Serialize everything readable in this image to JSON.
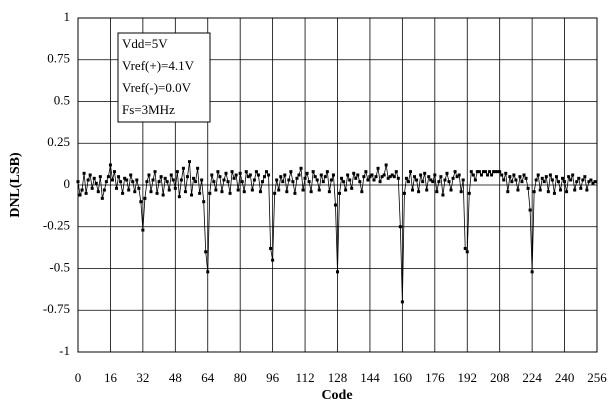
{
  "chart_data": {
    "type": "line",
    "xlabel": "Code",
    "ylabel": "DNL(LSB)",
    "annotations": [
      "Vdd=5V",
      "Vref(+)=4.1V",
      "Vref(-)=0.0V",
      "Fs=3MHz"
    ],
    "xlim": [
      0,
      256
    ],
    "ylim": [
      -1,
      1
    ],
    "xticks": [
      0,
      16,
      32,
      48,
      64,
      80,
      96,
      112,
      128,
      144,
      160,
      176,
      192,
      208,
      224,
      240,
      256
    ],
    "yticks": [
      -1,
      -0.75,
      -0.5,
      -0.25,
      0,
      0.25,
      0.5,
      0.75,
      1
    ],
    "grid": true,
    "color": "#000000",
    "x": [
      0,
      1,
      2,
      3,
      4,
      5,
      6,
      7,
      8,
      9,
      10,
      11,
      12,
      13,
      14,
      15,
      16,
      17,
      18,
      19,
      20,
      21,
      22,
      23,
      24,
      25,
      26,
      27,
      28,
      29,
      30,
      31,
      32,
      33,
      34,
      35,
      36,
      37,
      38,
      39,
      40,
      41,
      42,
      43,
      44,
      45,
      46,
      47,
      48,
      49,
      50,
      51,
      52,
      53,
      54,
      55,
      56,
      57,
      58,
      59,
      60,
      61,
      62,
      63,
      64,
      65,
      66,
      67,
      68,
      69,
      70,
      71,
      72,
      73,
      74,
      75,
      76,
      77,
      78,
      79,
      80,
      81,
      82,
      83,
      84,
      85,
      86,
      87,
      88,
      89,
      90,
      91,
      92,
      93,
      94,
      95,
      96,
      97,
      98,
      99,
      100,
      101,
      102,
      103,
      104,
      105,
      106,
      107,
      108,
      109,
      110,
      111,
      112,
      113,
      114,
      115,
      116,
      117,
      118,
      119,
      120,
      121,
      122,
      123,
      124,
      125,
      126,
      127,
      128,
      129,
      130,
      131,
      132,
      133,
      134,
      135,
      136,
      137,
      138,
      139,
      140,
      141,
      142,
      143,
      144,
      145,
      146,
      147,
      148,
      149,
      150,
      151,
      152,
      153,
      154,
      155,
      156,
      157,
      158,
      159,
      160,
      161,
      162,
      163,
      164,
      165,
      166,
      167,
      168,
      169,
      170,
      171,
      172,
      173,
      174,
      175,
      176,
      177,
      178,
      179,
      180,
      181,
      182,
      183,
      184,
      185,
      186,
      187,
      188,
      189,
      190,
      191,
      192,
      193,
      194,
      195,
      196,
      197,
      198,
      199,
      200,
      201,
      202,
      203,
      204,
      205,
      206,
      207,
      208,
      209,
      210,
      211,
      212,
      213,
      214,
      215,
      216,
      217,
      218,
      219,
      220,
      221,
      222,
      223,
      224,
      225,
      226,
      227,
      228,
      229,
      230,
      231,
      232,
      233,
      234,
      235,
      236,
      237,
      238,
      239,
      240,
      241,
      242,
      243,
      244,
      245,
      246,
      247,
      248,
      249,
      250,
      251,
      252,
      253,
      254,
      255
    ],
    "values": [
      0.02,
      -0.06,
      -0.03,
      0.07,
      -0.05,
      0.03,
      0.06,
      -0.02,
      0.04,
      0.01,
      -0.04,
      0.05,
      -0.08,
      -0.03,
      0.02,
      0.05,
      0.12,
      0.03,
      0.08,
      -0.02,
      0.05,
      0.02,
      -0.05,
      0.04,
      0.03,
      -0.03,
      0.06,
      0.02,
      -0.04,
      0.03,
      -0.02,
      -0.1,
      -0.27,
      -0.08,
      0.02,
      0.06,
      -0.04,
      0.03,
      0.08,
      -0.05,
      0.02,
      0.05,
      -0.06,
      0.04,
      0.02,
      -0.03,
      0.06,
      0.03,
      -0.02,
      0.08,
      -0.07,
      0.03,
      0.1,
      -0.04,
      0.05,
      0.14,
      -0.06,
      0.04,
      0.02,
      0.1,
      -0.05,
      0.03,
      -0.1,
      -0.4,
      -0.52,
      -0.05,
      0.06,
      0.02,
      -0.03,
      0.08,
      0.05,
      -0.04,
      0.03,
      0.07,
      0.02,
      -0.05,
      0.08,
      0.04,
      0.06,
      -0.03,
      0.07,
      0.02,
      -0.04,
      0.08,
      0.05,
      0.06,
      -0.03,
      0.03,
      0.08,
      0.06,
      -0.04,
      0.02,
      0.05,
      0.08,
      0.06,
      -0.38,
      -0.45,
      -0.05,
      0.03,
      -0.03,
      0.05,
      0.02,
      0.06,
      -0.04,
      0.03,
      0.08,
      0.02,
      -0.05,
      0.04,
      0.06,
      0.1,
      -0.03,
      0.04,
      0.07,
      0.02,
      -0.04,
      0.08,
      0.05,
      0.03,
      -0.03,
      0.06,
      0.02,
      0.05,
      0.08,
      -0.04,
      0.03,
      0.06,
      -0.12,
      -0.52,
      -0.05,
      0.04,
      0.02,
      -0.03,
      0.06,
      0.03,
      -0.02,
      0.07,
      0.04,
      0.06,
      0.02,
      -0.04,
      0.05,
      0.08,
      0.03,
      0.05,
      0.06,
      0.03,
      0.05,
      0.1,
      0.02,
      0.05,
      0.06,
      0.12,
      0.04,
      0.05,
      0.06,
      0.05,
      0.08,
      0.04,
      -0.25,
      -0.7,
      -0.05,
      0.04,
      0.02,
      0.08,
      -0.03,
      0.05,
      0.03,
      -0.04,
      0.06,
      0.02,
      0.07,
      -0.03,
      0.05,
      0.03,
      0.02,
      0.06,
      -0.04,
      0.02,
      0.05,
      -0.06,
      0.03,
      0.07,
      0.02,
      -0.03,
      0.04,
      0.08,
      0.05,
      0.06,
      -0.04,
      0.03,
      -0.38,
      -0.4,
      -0.05,
      0.08,
      0.06,
      0.03,
      0.08,
      0.08,
      0.06,
      0.08,
      0.08,
      0.06,
      0.08,
      0.06,
      0.08,
      0.08,
      0.08,
      0.08,
      0.06,
      0.03,
      0.07,
      -0.04,
      0.05,
      0.02,
      0.06,
      0.03,
      -0.03,
      0.05,
      0.02,
      0.06,
      0.04,
      -0.02,
      -0.15,
      -0.52,
      -0.04,
      0.03,
      0.06,
      -0.03,
      0.04,
      0.02,
      0.05,
      -0.04,
      0.06,
      0.03,
      -0.05,
      0.05,
      0.02,
      -0.03,
      0.04,
      0.02,
      -0.04,
      0.05,
      0.03,
      0.06,
      -0.03,
      0.02,
      0.04,
      -0.02,
      0.03,
      0.05,
      -0.03,
      0.02,
      0.03,
      0.01,
      0.02
    ]
  }
}
